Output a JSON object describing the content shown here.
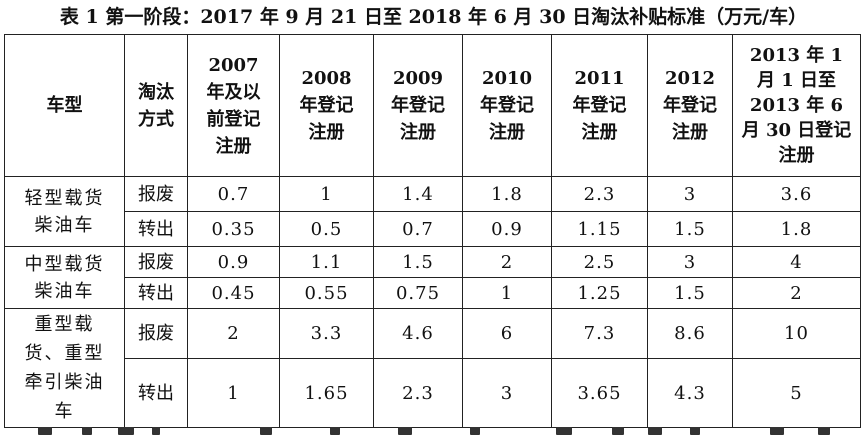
{
  "caption": "表 1 第一阶段：2017 年 9 月 21 日至 2018 年 6 月 30 日淘汰补贴标准（万元/车）",
  "headers": {
    "vehicle_type": "车型",
    "method": "淘汰方式",
    "years": [
      "2007 年及以前登记注册",
      "2008 年登记注册",
      "2009 年登记注册",
      "2010 年登记注册",
      "2011 年登记注册",
      "2012 年登记注册",
      "2013 年 1 月 1 日至 2013 年 6 月 30 日登记注册"
    ]
  },
  "groups": [
    {
      "vehicle_type": "轻型载货柴油车",
      "rows": [
        {
          "method": "报废",
          "values": [
            "0.7",
            "1",
            "1.4",
            "1.8",
            "2.3",
            "3",
            "3.6"
          ]
        },
        {
          "method": "转出",
          "values": [
            "0.35",
            "0.5",
            "0.7",
            "0.9",
            "1.15",
            "1.5",
            "1.8"
          ]
        }
      ]
    },
    {
      "vehicle_type": "中型载货柴油车",
      "rows": [
        {
          "method": "报废",
          "values": [
            "0.9",
            "1.1",
            "1.5",
            "2",
            "2.5",
            "3",
            "4"
          ]
        },
        {
          "method": "转出",
          "values": [
            "0.45",
            "0.55",
            "0.75",
            "1",
            "1.25",
            "1.5",
            "2"
          ]
        }
      ]
    },
    {
      "vehicle_type": "重型载货、重型牵引柴油车",
      "rows": [
        {
          "method": "报废",
          "values": [
            "2",
            "3.3",
            "4.6",
            "6",
            "7.3",
            "8.6",
            "10"
          ]
        },
        {
          "method": "转出",
          "values": [
            "1",
            "1.65",
            "2.3",
            "3",
            "3.65",
            "4.3",
            "5"
          ]
        }
      ]
    }
  ]
}
